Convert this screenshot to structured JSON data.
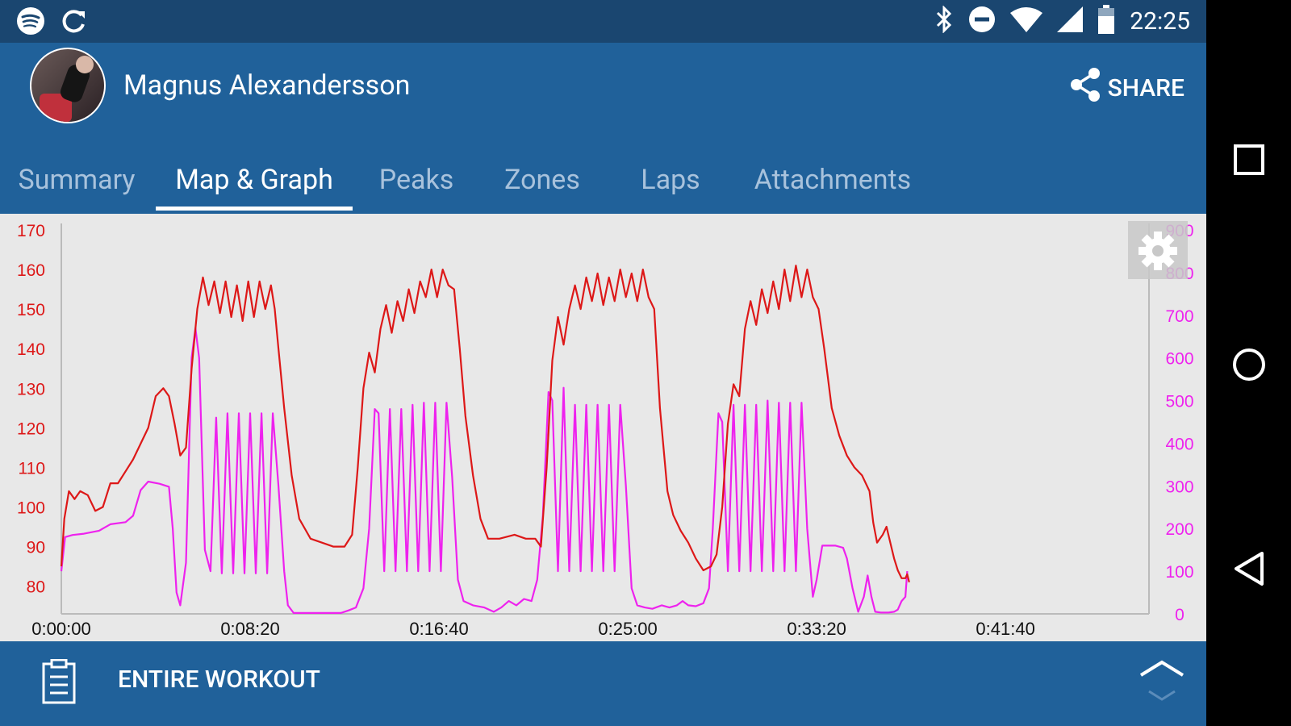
{
  "status_bar": {
    "left_icons": [
      "spotify-icon",
      "sync-icon"
    ],
    "right_icons": [
      "bluetooth-icon",
      "do-not-disturb-icon",
      "wifi-icon",
      "signal-icon",
      "battery-icon"
    ],
    "time": "22:25"
  },
  "header": {
    "user_name": "Magnus Alexandersson",
    "share_label": "SHARE"
  },
  "tabs": [
    {
      "label": "Summary",
      "active": false
    },
    {
      "label": "Map & Graph",
      "active": true
    },
    {
      "label": "Peaks",
      "active": false
    },
    {
      "label": "Zones",
      "active": false
    },
    {
      "label": "Laps",
      "active": false
    },
    {
      "label": "Attachments",
      "active": false
    }
  ],
  "chart_data": {
    "type": "line",
    "x_unit": "h:mm:ss",
    "xlim": [
      0,
      2880
    ],
    "x_ticks": [
      {
        "v": 0,
        "label": "0:00:00"
      },
      {
        "v": 500,
        "label": "0:08:20"
      },
      {
        "v": 1000,
        "label": "0:16:40"
      },
      {
        "v": 1500,
        "label": "0:25:00"
      },
      {
        "v": 2000,
        "label": "0:33:20"
      },
      {
        "v": 2500,
        "label": "0:41:40"
      }
    ],
    "y_left": {
      "color": "#dd1818",
      "ylim": [
        73,
        170
      ],
      "ticks": [
        80,
        90,
        100,
        110,
        120,
        130,
        140,
        150,
        160,
        170
      ]
    },
    "y_right": {
      "color": "#ee22ee",
      "ylim": [
        0,
        900
      ],
      "ticks": [
        0,
        100,
        200,
        300,
        400,
        500,
        600,
        700,
        800,
        900
      ]
    },
    "series": [
      {
        "axis": "left",
        "color": "#dd1818",
        "points": [
          [
            0,
            85
          ],
          [
            8,
            97
          ],
          [
            20,
            104
          ],
          [
            35,
            102
          ],
          [
            50,
            104
          ],
          [
            70,
            103
          ],
          [
            90,
            99
          ],
          [
            110,
            100
          ],
          [
            130,
            106
          ],
          [
            150,
            106
          ],
          [
            170,
            109
          ],
          [
            190,
            112
          ],
          [
            210,
            116
          ],
          [
            230,
            120
          ],
          [
            250,
            128
          ],
          [
            270,
            130
          ],
          [
            285,
            128
          ],
          [
            300,
            121
          ],
          [
            315,
            113
          ],
          [
            330,
            115
          ],
          [
            345,
            135
          ],
          [
            360,
            150
          ],
          [
            375,
            158
          ],
          [
            390,
            151
          ],
          [
            405,
            157
          ],
          [
            420,
            149
          ],
          [
            435,
            157
          ],
          [
            450,
            148
          ],
          [
            465,
            156
          ],
          [
            480,
            147
          ],
          [
            495,
            157
          ],
          [
            510,
            148
          ],
          [
            525,
            157
          ],
          [
            540,
            150
          ],
          [
            555,
            156
          ],
          [
            565,
            150
          ],
          [
            575,
            140
          ],
          [
            590,
            125
          ],
          [
            610,
            108
          ],
          [
            630,
            97
          ],
          [
            660,
            92
          ],
          [
            690,
            91
          ],
          [
            720,
            90
          ],
          [
            750,
            90
          ],
          [
            770,
            93
          ],
          [
            785,
            110
          ],
          [
            800,
            130
          ],
          [
            815,
            139
          ],
          [
            830,
            134
          ],
          [
            845,
            145
          ],
          [
            860,
            151
          ],
          [
            875,
            144
          ],
          [
            890,
            152
          ],
          [
            905,
            147
          ],
          [
            920,
            155
          ],
          [
            935,
            149
          ],
          [
            950,
            157
          ],
          [
            965,
            153
          ],
          [
            980,
            160
          ],
          [
            995,
            153
          ],
          [
            1010,
            160
          ],
          [
            1025,
            156
          ],
          [
            1040,
            155
          ],
          [
            1055,
            140
          ],
          [
            1070,
            123
          ],
          [
            1090,
            108
          ],
          [
            1110,
            97
          ],
          [
            1130,
            92
          ],
          [
            1160,
            92
          ],
          [
            1200,
            93
          ],
          [
            1230,
            92
          ],
          [
            1255,
            92
          ],
          [
            1270,
            90
          ],
          [
            1285,
            110
          ],
          [
            1300,
            137
          ],
          [
            1315,
            148
          ],
          [
            1330,
            141
          ],
          [
            1345,
            150
          ],
          [
            1360,
            156
          ],
          [
            1375,
            150
          ],
          [
            1390,
            158
          ],
          [
            1405,
            152
          ],
          [
            1420,
            159
          ],
          [
            1435,
            151
          ],
          [
            1450,
            158
          ],
          [
            1465,
            152
          ],
          [
            1480,
            160
          ],
          [
            1495,
            153
          ],
          [
            1510,
            159
          ],
          [
            1525,
            152
          ],
          [
            1540,
            160
          ],
          [
            1555,
            153
          ],
          [
            1570,
            150
          ],
          [
            1585,
            125
          ],
          [
            1605,
            104
          ],
          [
            1620,
            98
          ],
          [
            1640,
            94
          ],
          [
            1660,
            91
          ],
          [
            1680,
            87
          ],
          [
            1700,
            84
          ],
          [
            1720,
            85
          ],
          [
            1735,
            88
          ],
          [
            1750,
            100
          ],
          [
            1765,
            121
          ],
          [
            1780,
            131
          ],
          [
            1795,
            128
          ],
          [
            1810,
            145
          ],
          [
            1825,
            152
          ],
          [
            1840,
            146
          ],
          [
            1855,
            155
          ],
          [
            1870,
            149
          ],
          [
            1885,
            157
          ],
          [
            1900,
            150
          ],
          [
            1915,
            160
          ],
          [
            1930,
            152
          ],
          [
            1945,
            161
          ],
          [
            1960,
            153
          ],
          [
            1975,
            160
          ],
          [
            1990,
            153
          ],
          [
            2005,
            150
          ],
          [
            2020,
            140
          ],
          [
            2040,
            125
          ],
          [
            2060,
            118
          ],
          [
            2080,
            113
          ],
          [
            2100,
            110
          ],
          [
            2120,
            108
          ],
          [
            2140,
            104
          ],
          [
            2150,
            96
          ],
          [
            2160,
            91
          ],
          [
            2175,
            93
          ],
          [
            2185,
            95
          ],
          [
            2195,
            91
          ],
          [
            2205,
            87
          ],
          [
            2215,
            84
          ],
          [
            2225,
            82
          ],
          [
            2235,
            82
          ],
          [
            2240,
            83
          ],
          [
            2245,
            81
          ]
        ]
      },
      {
        "axis": "right",
        "color": "#ee22ee",
        "points": [
          [
            0,
            100
          ],
          [
            10,
            180
          ],
          [
            30,
            185
          ],
          [
            60,
            188
          ],
          [
            100,
            195
          ],
          [
            130,
            210
          ],
          [
            170,
            215
          ],
          [
            190,
            230
          ],
          [
            210,
            290
          ],
          [
            230,
            310
          ],
          [
            260,
            305
          ],
          [
            285,
            298
          ],
          [
            295,
            200
          ],
          [
            305,
            50
          ],
          [
            315,
            20
          ],
          [
            330,
            120
          ],
          [
            345,
            600
          ],
          [
            355,
            670
          ],
          [
            365,
            600
          ],
          [
            380,
            150
          ],
          [
            395,
            100
          ],
          [
            410,
            460
          ],
          [
            425,
            95
          ],
          [
            440,
            470
          ],
          [
            455,
            95
          ],
          [
            470,
            470
          ],
          [
            485,
            95
          ],
          [
            500,
            470
          ],
          [
            515,
            95
          ],
          [
            530,
            470
          ],
          [
            545,
            95
          ],
          [
            560,
            470
          ],
          [
            575,
            300
          ],
          [
            590,
            100
          ],
          [
            600,
            20
          ],
          [
            615,
            2
          ],
          [
            650,
            2
          ],
          [
            700,
            2
          ],
          [
            740,
            2
          ],
          [
            760,
            8
          ],
          [
            780,
            15
          ],
          [
            800,
            60
          ],
          [
            815,
            200
          ],
          [
            830,
            480
          ],
          [
            840,
            470
          ],
          [
            855,
            100
          ],
          [
            870,
            480
          ],
          [
            885,
            100
          ],
          [
            900,
            480
          ],
          [
            915,
            100
          ],
          [
            930,
            490
          ],
          [
            945,
            100
          ],
          [
            960,
            495
          ],
          [
            975,
            100
          ],
          [
            990,
            495
          ],
          [
            1005,
            100
          ],
          [
            1020,
            495
          ],
          [
            1035,
            320
          ],
          [
            1050,
            80
          ],
          [
            1065,
            30
          ],
          [
            1090,
            20
          ],
          [
            1120,
            15
          ],
          [
            1145,
            5
          ],
          [
            1165,
            15
          ],
          [
            1185,
            30
          ],
          [
            1205,
            20
          ],
          [
            1225,
            35
          ],
          [
            1245,
            30
          ],
          [
            1260,
            80
          ],
          [
            1275,
            230
          ],
          [
            1290,
            520
          ],
          [
            1300,
            500
          ],
          [
            1315,
            100
          ],
          [
            1330,
            530
          ],
          [
            1345,
            100
          ],
          [
            1360,
            490
          ],
          [
            1375,
            100
          ],
          [
            1390,
            490
          ],
          [
            1405,
            100
          ],
          [
            1420,
            490
          ],
          [
            1435,
            100
          ],
          [
            1450,
            490
          ],
          [
            1465,
            100
          ],
          [
            1480,
            490
          ],
          [
            1495,
            300
          ],
          [
            1510,
            60
          ],
          [
            1525,
            20
          ],
          [
            1545,
            15
          ],
          [
            1565,
            12
          ],
          [
            1590,
            20
          ],
          [
            1610,
            15
          ],
          [
            1630,
            20
          ],
          [
            1645,
            30
          ],
          [
            1660,
            20
          ],
          [
            1680,
            18
          ],
          [
            1700,
            25
          ],
          [
            1715,
            60
          ],
          [
            1725,
            200
          ],
          [
            1740,
            470
          ],
          [
            1750,
            450
          ],
          [
            1765,
            100
          ],
          [
            1780,
            490
          ],
          [
            1795,
            100
          ],
          [
            1810,
            490
          ],
          [
            1825,
            100
          ],
          [
            1840,
            490
          ],
          [
            1855,
            100
          ],
          [
            1870,
            500
          ],
          [
            1885,
            100
          ],
          [
            1900,
            495
          ],
          [
            1915,
            100
          ],
          [
            1930,
            495
          ],
          [
            1945,
            100
          ],
          [
            1960,
            495
          ],
          [
            1975,
            200
          ],
          [
            1990,
            40
          ],
          [
            2000,
            80
          ],
          [
            2015,
            160
          ],
          [
            2030,
            160
          ],
          [
            2050,
            160
          ],
          [
            2070,
            155
          ],
          [
            2080,
            130
          ],
          [
            2095,
            60
          ],
          [
            2110,
            5
          ],
          [
            2125,
            40
          ],
          [
            2135,
            90
          ],
          [
            2145,
            40
          ],
          [
            2155,
            5
          ],
          [
            2170,
            3
          ],
          [
            2190,
            3
          ],
          [
            2205,
            5
          ],
          [
            2215,
            10
          ],
          [
            2225,
            30
          ],
          [
            2235,
            40
          ],
          [
            2240,
            100
          ]
        ]
      }
    ]
  },
  "bottom_bar": {
    "label": "ENTIRE WORKOUT"
  },
  "nav_bar": {
    "buttons": [
      "recents-icon",
      "home-icon",
      "back-icon"
    ]
  }
}
